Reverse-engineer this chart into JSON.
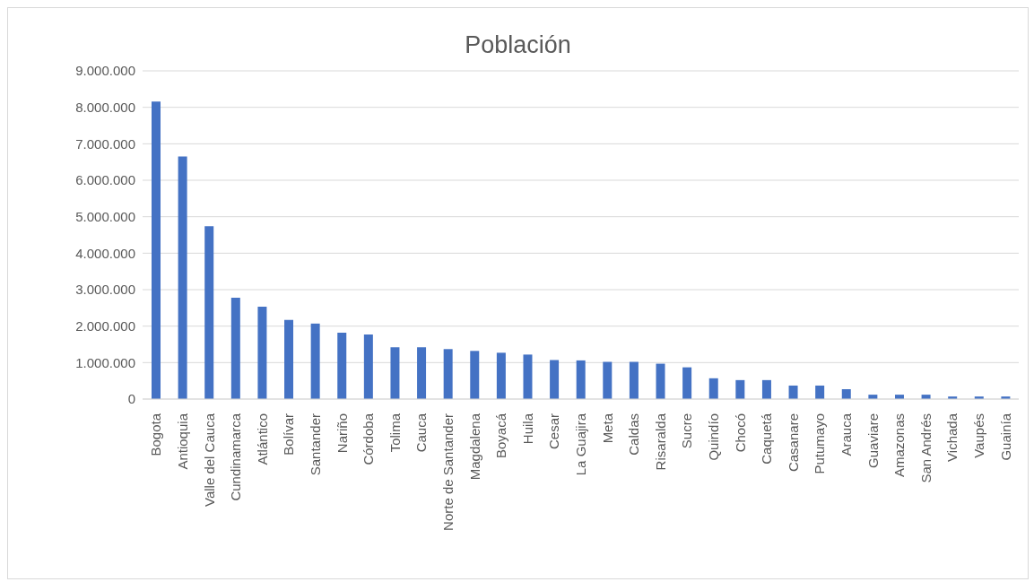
{
  "chart_data": {
    "type": "bar",
    "title": "Población",
    "categories": [
      "Bogota",
      "Antioquia",
      "Valle del Cauca",
      "Cundinamarca",
      "Atlántico",
      "Bolívar",
      "Santander",
      "Nariño",
      "Córdoba",
      "Tolima",
      "Cauca",
      "Norte de Santander",
      "Magdalena",
      "Boyacá",
      "Huila",
      "Cesar",
      "La Guajira",
      "Meta",
      "Caldas",
      "Risaralda",
      "Sucre",
      "Quindío",
      "Chocó",
      "Caquetá",
      "Casanare",
      "Putumayo",
      "Arauca",
      "Guaviare",
      "Amazonas",
      "San Andrés",
      "Vichada",
      "Vaupés",
      "Guainía"
    ],
    "values": [
      8160000,
      6650000,
      4740000,
      2780000,
      2530000,
      2170000,
      2070000,
      1820000,
      1770000,
      1420000,
      1420000,
      1370000,
      1320000,
      1270000,
      1220000,
      1070000,
      1060000,
      1020000,
      1020000,
      970000,
      870000,
      570000,
      520000,
      520000,
      370000,
      370000,
      270000,
      120000,
      120000,
      120000,
      70000,
      70000,
      70000
    ],
    "color": "#4472c4",
    "ylim": [
      0,
      9000000
    ],
    "yticks": [
      0,
      {
        "value": 1000000,
        "label": "1.000.000"
      },
      {
        "value": 2000000,
        "label": "2.000.000"
      },
      {
        "value": 3000000,
        "label": "3.000.000"
      },
      {
        "value": 4000000,
        "label": "4.000.000"
      },
      {
        "value": 5000000,
        "label": "5.000.000"
      },
      {
        "value": 6000000,
        "label": "6.000.000"
      },
      {
        "value": 7000000,
        "label": "7.000.000"
      },
      {
        "value": 8000000,
        "label": "8.000.000"
      },
      {
        "value": 9000000,
        "label": "9.000.000"
      }
    ],
    "grid": "y"
  }
}
